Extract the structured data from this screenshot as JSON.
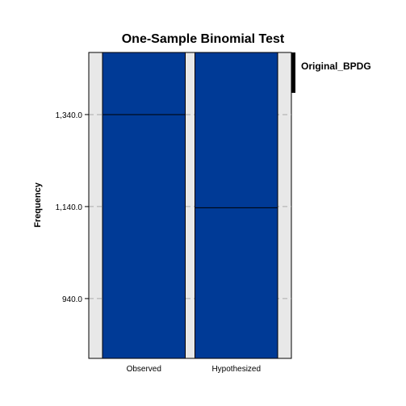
{
  "chart_data": {
    "type": "bar",
    "title": "One-Sample Binomial Test",
    "xlabel": "",
    "ylabel": "Frequency",
    "categories": [
      "Observed",
      "Hypothesized"
    ],
    "panel_label": "Original_BPDG",
    "values": [
      1340,
      1137.5
    ],
    "yticks": [
      "1,340.0",
      "1,140.0",
      "940.0"
    ],
    "ytick_values": [
      1340,
      1140,
      940
    ],
    "ylim": [
      810,
      1475
    ],
    "grid": "dashed horizontal",
    "colors": {
      "bar_fill": "#003A96",
      "panel_bg": "#E8E8E8",
      "marker_line": "#000000",
      "grid": "#AAAAAA"
    }
  }
}
